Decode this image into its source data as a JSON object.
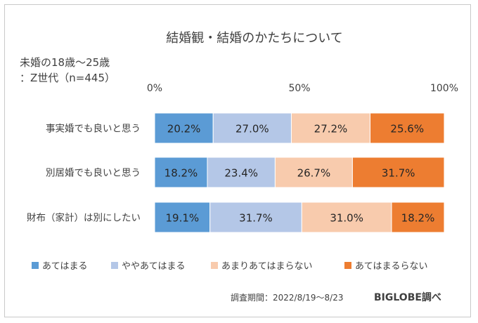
{
  "chart_data": {
    "type": "stacked-bar-100",
    "title": "結婚観・結婚のかたちについて",
    "subtitle_line1": "未婚の18歳～25歳",
    "subtitle_line2": "：Z世代（n=445）",
    "x_ticks": [
      "0%",
      "50%",
      "100%"
    ],
    "xlim": [
      0,
      100
    ],
    "categories": [
      "事実婚でも良いと思う",
      "別居婚でも良いと思う",
      "財布（家計）は別にしたい"
    ],
    "series": [
      {
        "name": "あてはまる",
        "color": "#5b9bd5",
        "values": [
          20.2,
          18.2,
          19.1
        ],
        "labels": [
          "20.2%",
          "18.2%",
          "19.1%"
        ]
      },
      {
        "name": "ややあてはまる",
        "color": "#b4c7e7",
        "values": [
          27.0,
          23.4,
          31.7
        ],
        "labels": [
          "27.0%",
          "23.4%",
          "31.7%"
        ]
      },
      {
        "name": "あまりあてはまらない",
        "color": "#f8cbad",
        "values": [
          27.2,
          26.7,
          31.0
        ],
        "labels": [
          "27.2%",
          "26.7%",
          "31.0%"
        ]
      },
      {
        "name": "あてはまるらない",
        "color": "#ed7d31",
        "values": [
          25.6,
          31.7,
          18.2
        ],
        "labels": [
          "25.6%",
          "31.7%",
          "18.2%"
        ]
      }
    ],
    "legend_position": "bottom",
    "grid": false
  },
  "footer": {
    "period": "調査期間：2022/8/19～8/23",
    "source": "BIGLOBE調べ"
  }
}
